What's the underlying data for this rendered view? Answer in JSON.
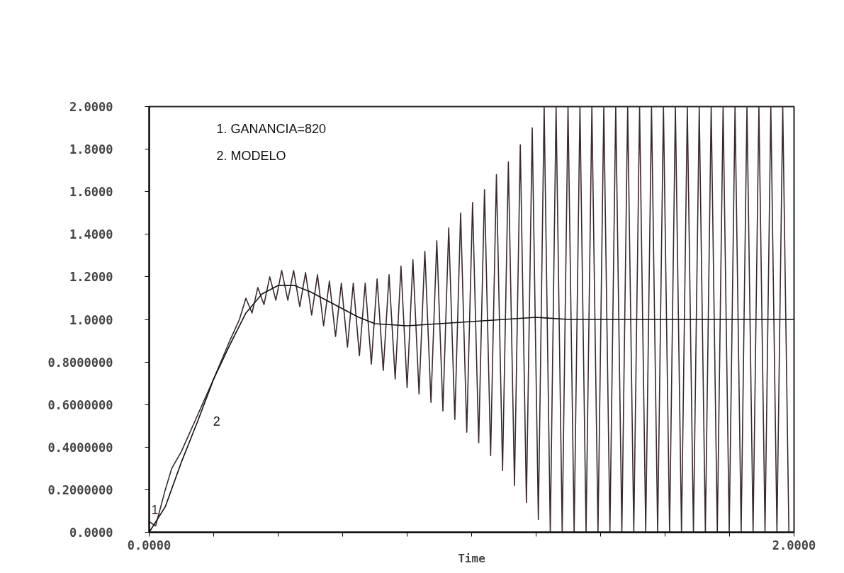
{
  "chart_data": {
    "type": "line",
    "xlabel": "Time",
    "annotations": [
      "1. GANANCIA=820",
      "2. MODELO"
    ],
    "xlim": [
      0,
      2
    ],
    "ylim": [
      0,
      2
    ],
    "xticks": [
      {
        "value": 0,
        "label": "0.0000"
      },
      {
        "value": 0.2,
        "label": null
      },
      {
        "value": 0.4,
        "label": null
      },
      {
        "value": 0.6,
        "label": null
      },
      {
        "value": 0.8,
        "label": null
      },
      {
        "value": 1.0,
        "label": null
      },
      {
        "value": 1.2,
        "label": null
      },
      {
        "value": 1.4,
        "label": null
      },
      {
        "value": 1.6,
        "label": null
      },
      {
        "value": 1.8,
        "label": null
      },
      {
        "value": 2,
        "label": "2.0000"
      }
    ],
    "yticks": [
      {
        "value": 0,
        "label": "0.0000"
      },
      {
        "value": 0.2,
        "label": "0.2000000"
      },
      {
        "value": 0.4,
        "label": "0.4000000"
      },
      {
        "value": 0.6,
        "label": "0.6000000"
      },
      {
        "value": 0.8,
        "label": "0.8000000"
      },
      {
        "value": 1.0,
        "label": "1.0000"
      },
      {
        "value": 1.2,
        "label": "1.2000"
      },
      {
        "value": 1.4,
        "label": "1.4000"
      },
      {
        "value": 1.6,
        "label": "1.6000"
      },
      {
        "value": 1.8,
        "label": "1.8000"
      },
      {
        "value": 2,
        "label": "2.0000"
      }
    ],
    "grid": false,
    "marker": "none",
    "line_style": "solid",
    "series": [
      {
        "name": "1",
        "color": "#3a2a30",
        "x": [
          0,
          0.02,
          0.05,
          0.07,
          0.1,
          0.15,
          0.2,
          0.25,
          0.28,
          0.3,
          0.319,
          0.337,
          0.356,
          0.374,
          0.393,
          0.411,
          0.43,
          0.448,
          0.467,
          0.485,
          0.504,
          0.522,
          0.541,
          0.559,
          0.578,
          0.596,
          0.615,
          0.633,
          0.652,
          0.67,
          0.689,
          0.707,
          0.726,
          0.744,
          0.763,
          0.781,
          0.8,
          0.818,
          0.837,
          0.855,
          0.874,
          0.892,
          0.911,
          0.929,
          0.948,
          0.966,
          0.985,
          1.003,
          1.022,
          1.04,
          1.059,
          1.077,
          1.096,
          1.114,
          1.133,
          1.151,
          1.17,
          1.188,
          1.207,
          1.225,
          1.244,
          1.262,
          1.281,
          1.299,
          1.318,
          1.336,
          1.355,
          1.373,
          1.392,
          1.41,
          1.429,
          1.447,
          1.466,
          1.484,
          1.503,
          1.521,
          1.54,
          1.558,
          1.577,
          1.595,
          1.614,
          1.632,
          1.651,
          1.669,
          1.688,
          1.706,
          1.725,
          1.743,
          1.762,
          1.78,
          1.799,
          1.817,
          1.836,
          1.854,
          1.873,
          1.891,
          1.91,
          1.928,
          1.947,
          1.965,
          1.984
        ],
        "values": [
          0.05,
          0.03,
          0.2,
          0.3,
          0.38,
          0.55,
          0.72,
          0.9,
          1.0,
          1.1,
          1.03,
          1.15,
          1.07,
          1.2,
          1.09,
          1.23,
          1.09,
          1.23,
          1.06,
          1.22,
          1.02,
          1.21,
          0.97,
          1.18,
          0.92,
          1.17,
          0.87,
          1.17,
          0.83,
          1.17,
          0.79,
          1.19,
          0.76,
          1.21,
          0.72,
          1.25,
          0.68,
          1.28,
          0.65,
          1.32,
          0.61,
          1.37,
          0.57,
          1.43,
          0.53,
          1.5,
          0.47,
          1.55,
          0.42,
          1.61,
          0.36,
          1.68,
          0.29,
          1.74,
          0.22,
          1.82,
          0.14,
          1.9,
          0.06,
          2.0,
          0.0,
          2.0,
          0.0,
          2.0,
          0.0,
          2.0,
          0.0,
          2.0,
          0.0,
          2.0,
          0.0,
          2.0,
          0.0,
          2.0,
          0.0,
          2.0,
          0.0,
          2.0,
          0.0,
          2.0,
          0.0,
          2.0,
          0.0,
          2.0,
          0.0,
          2.0,
          0.0,
          2.0,
          0.0,
          2.0,
          0.0,
          2.0,
          0.0,
          2.0,
          0.0,
          2.0,
          0.0,
          2.0,
          0.0,
          2.0,
          0.0
        ]
      },
      {
        "name": "2",
        "color": "#111111",
        "x": [
          0,
          0.05,
          0.1,
          0.15,
          0.2,
          0.25,
          0.3,
          0.35,
          0.4,
          0.45,
          0.5,
          0.55,
          0.6,
          0.65,
          0.7,
          0.8,
          0.9,
          1.0,
          1.1,
          1.2,
          1.3,
          1.5,
          1.75,
          2.0
        ],
        "values": [
          0,
          0.12,
          0.33,
          0.52,
          0.72,
          0.88,
          1.03,
          1.12,
          1.16,
          1.16,
          1.13,
          1.09,
          1.05,
          1.01,
          0.98,
          0.97,
          0.98,
          0.99,
          1.0,
          1.01,
          1.0,
          1.0,
          1.0,
          1.0
        ]
      }
    ]
  }
}
